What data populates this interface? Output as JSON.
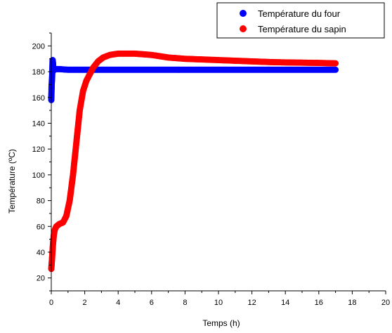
{
  "chart_data": {
    "type": "scatter",
    "title": "",
    "xlabel": "Temps (h)",
    "ylabel": "Température (ºC)",
    "xlim": [
      0,
      20
    ],
    "ylim": [
      10,
      210
    ],
    "xticks": [
      0,
      2,
      4,
      6,
      8,
      10,
      12,
      14,
      16,
      18,
      20
    ],
    "yticks": [
      20,
      40,
      60,
      80,
      100,
      120,
      140,
      160,
      180,
      200
    ],
    "grid": false,
    "legend_position": "top-right",
    "series": [
      {
        "name": "Température du four",
        "color": "#0000ff",
        "x": [
          0.0,
          0.02,
          0.05,
          0.08,
          0.1,
          0.12,
          0.15,
          0.2,
          0.3,
          0.5,
          1,
          2,
          4,
          6,
          8,
          10,
          12,
          14,
          16,
          17
        ],
        "y": [
          158,
          169,
          176,
          189,
          187,
          183,
          181,
          182,
          182,
          182,
          181.5,
          181.5,
          181.5,
          181.5,
          181.5,
          181.5,
          181.5,
          181.5,
          181.5,
          181.5
        ]
      },
      {
        "name": "Température du sapin",
        "color": "#ff0000",
        "x": [
          0,
          0.05,
          0.1,
          0.15,
          0.2,
          0.3,
          0.4,
          0.5,
          0.7,
          0.9,
          1.1,
          1.3,
          1.5,
          1.7,
          1.9,
          2.1,
          2.3,
          2.5,
          2.8,
          3.1,
          3.5,
          4,
          4.5,
          5,
          6,
          7,
          8,
          9,
          10,
          11,
          12,
          13,
          14,
          15,
          16,
          17
        ],
        "y": [
          27,
          36,
          46,
          53,
          57,
          60,
          61,
          62,
          63,
          68,
          80,
          100,
          125,
          150,
          165,
          173,
          178,
          183,
          188,
          191,
          193,
          194,
          194,
          194,
          193,
          191,
          190,
          189.5,
          189,
          188.5,
          188,
          187.5,
          187.2,
          187,
          186.8,
          186.5
        ]
      }
    ]
  }
}
